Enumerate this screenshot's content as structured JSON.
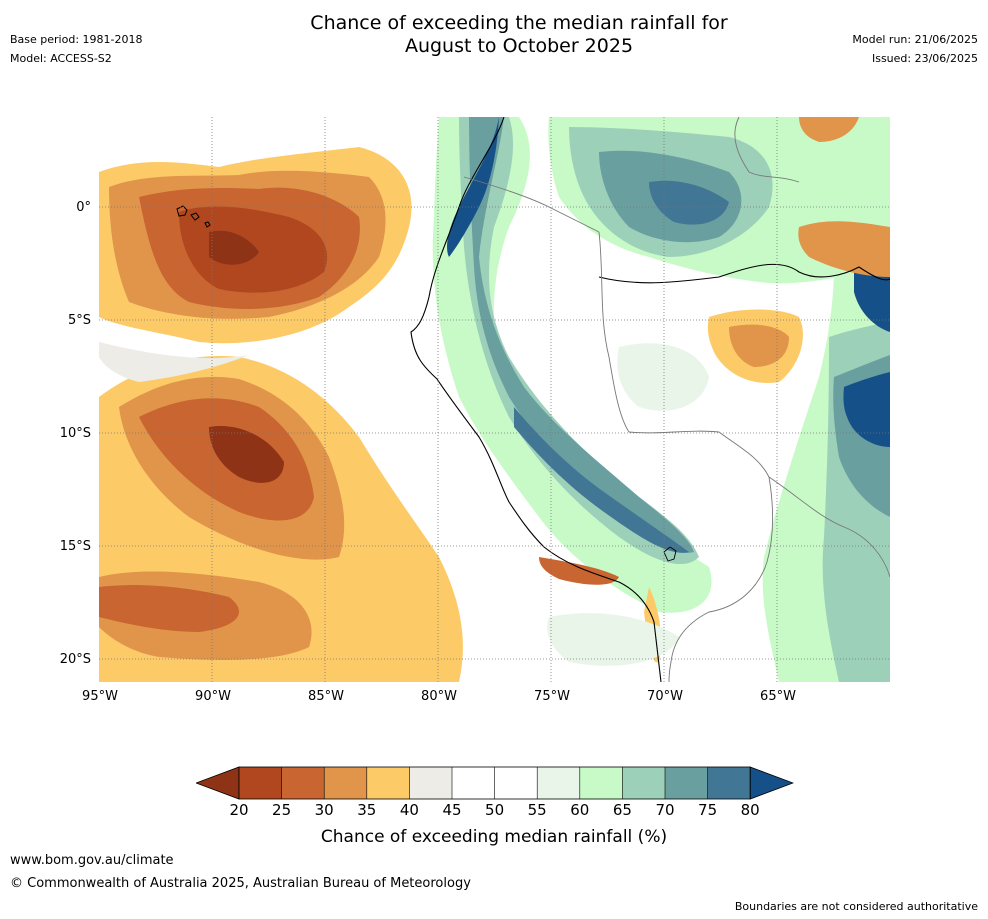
{
  "header": {
    "title_line1": "Chance of exceeding the median rainfall for",
    "title_line2": "August to October 2025",
    "base_period": "Base period: 1981-2018",
    "model": "Model: ACCESS-S2",
    "model_run": "Model run: 21/06/2025",
    "issued": "Issued: 23/06/2025"
  },
  "map": {
    "lat_labels": [
      "0°",
      "5°S",
      "10°S",
      "15°S",
      "20°S"
    ],
    "lon_labels": [
      "95°W",
      "90°W",
      "85°W",
      "80°W",
      "75°W",
      "70°W",
      "65°W"
    ],
    "gridlines": true,
    "colors": {
      "20": "#8f3317",
      "25": "#b0471f",
      "30": "#c96530",
      "35": "#e0954a",
      "40": "#fdca68",
      "45": "#eeece7",
      "50": "#ffffff",
      "55": "#ffffff",
      "60": "#eaf5ea",
      "65": "#c8fac8",
      "70": "#9dd0b9",
      "75": "#6a9fa0",
      "80": "#417795",
      "85": "#155088"
    }
  },
  "colorbar": {
    "ticks": [
      "20",
      "25",
      "30",
      "35",
      "40",
      "45",
      "50",
      "55",
      "60",
      "65",
      "70",
      "75",
      "80"
    ],
    "label": "Chance of exceeding median rainfall (%)"
  },
  "footer": {
    "url": "www.bom.gov.au/climate",
    "copyright": "© Commonwealth of Australia 2025, Australian Bureau of Meteorology",
    "disclaimer": "Boundaries are not considered authoritative"
  }
}
